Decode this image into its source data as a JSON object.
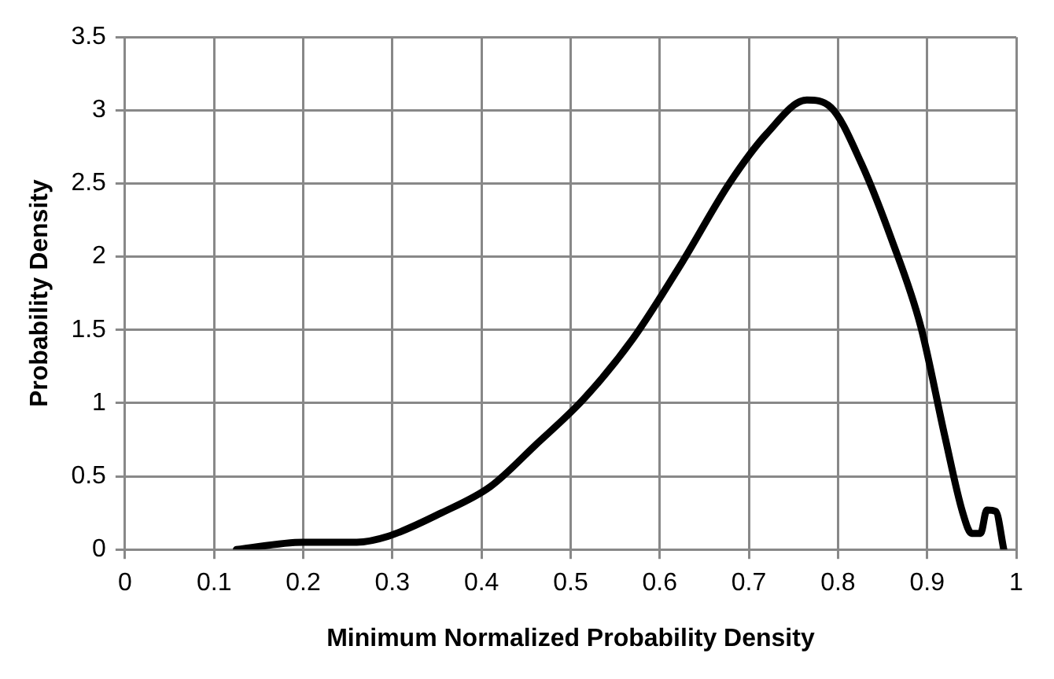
{
  "chart_data": {
    "type": "line",
    "xlabel": "Minimum Normalized Probability Density",
    "ylabel": "Probability Density",
    "x": [
      0.125,
      0.2,
      0.26,
      0.295,
      0.355,
      0.41,
      0.46,
      0.515,
      0.57,
      0.625,
      0.678,
      0.72,
      0.765,
      0.792,
      0.826,
      0.86,
      0.893,
      0.92,
      0.94,
      0.95,
      0.96,
      0.967,
      0.977,
      0.986
    ],
    "series": [
      {
        "color": "#000000",
        "values": [
          0,
          0.05,
          0.05,
          0.09,
          0.25,
          0.43,
          0.71,
          1.03,
          1.44,
          1.96,
          2.5,
          2.84,
          3.07,
          3.02,
          2.64,
          2.12,
          1.52,
          0.77,
          0.25,
          0.11,
          0.11,
          0.27,
          0.26,
          0
        ]
      }
    ],
    "xlim": [
      0,
      1
    ],
    "xticks": [
      0,
      0.1,
      0.2,
      0.3,
      0.4,
      0.5,
      0.6,
      0.7,
      0.8,
      0.9,
      1
    ],
    "ylim": [
      0,
      3.5
    ],
    "yticks": [
      0,
      0.5,
      1,
      1.5,
      2,
      2.5,
      3,
      3.5
    ],
    "grid": true,
    "legend": false,
    "marker": "none",
    "line_style": "solid"
  }
}
